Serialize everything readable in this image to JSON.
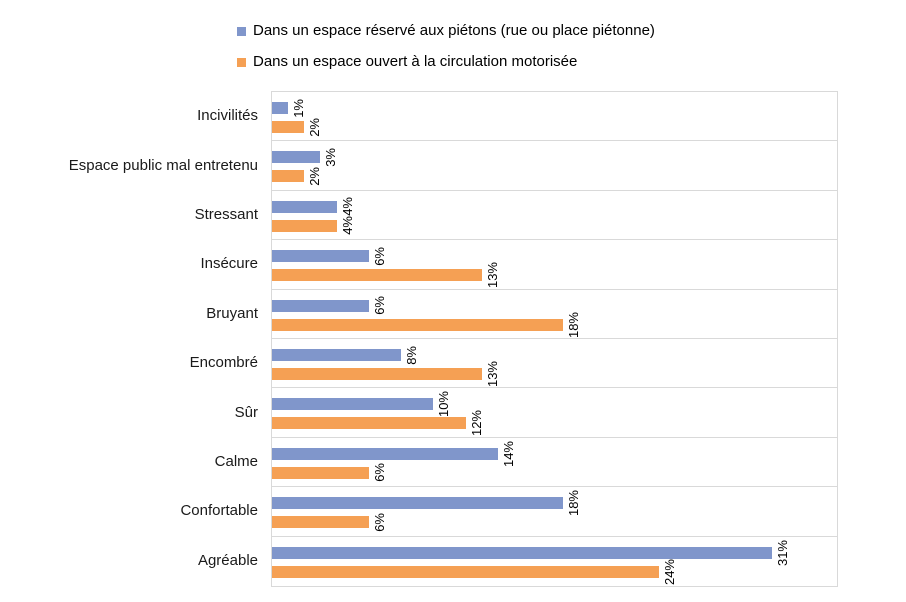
{
  "chart_data": {
    "type": "bar",
    "orientation": "horizontal",
    "title": "",
    "xlabel": "",
    "ylabel": "",
    "xlim": [
      0,
      35
    ],
    "grid": "category-separator-lines-only",
    "legend_position": "top",
    "data_labels": "rotated-90-bottom-to-top-outside-end",
    "value_suffix": "%",
    "categories_order": "top-to-bottom",
    "categories": [
      "Incivilités",
      "Espace public mal entretenu",
      "Stressant",
      "Insécure",
      "Bruyant",
      "Encombré",
      "Sûr",
      "Calme",
      "Confortable",
      "Agréable"
    ],
    "series": [
      {
        "name": "Dans un espace réservé aux piétons (rue ou place piétonne)",
        "color": "#8096CB",
        "values": [
          1,
          3,
          4,
          6,
          6,
          8,
          10,
          14,
          18,
          31
        ]
      },
      {
        "name": "Dans un espace ouvert à la circulation motorisée",
        "color": "#F5A054",
        "values": [
          2,
          2,
          4,
          13,
          18,
          13,
          12,
          6,
          6,
          24
        ]
      }
    ],
    "colors": {
      "series1": "#8096CB",
      "series2": "#F5A054",
      "separator_line": "#D9D9D9",
      "plot_border": "#D9D9D9",
      "text": "#000000",
      "background": "#FFFFFF"
    }
  }
}
